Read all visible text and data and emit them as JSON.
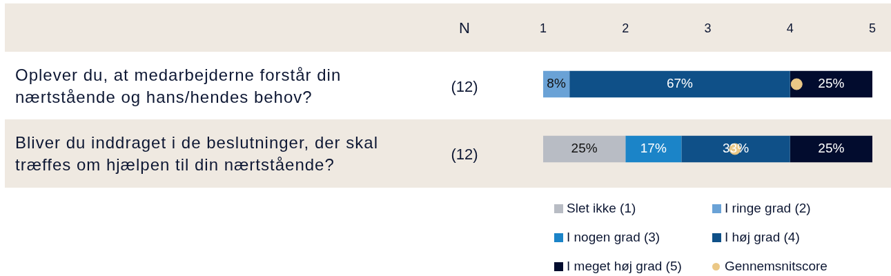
{
  "chart_data": {
    "type": "bar",
    "orientation": "horizontal",
    "stacked": true,
    "categories": [
      "Oplever du, at medarbejderne forstår din nærtstående og hans/hendes behov?",
      "Bliver du inddraget i de beslutninger, der skal træffes om hjælpen til din nærtstående?"
    ],
    "series": [
      {
        "name": "Slet ikke (1)",
        "color": "#b8bcc4",
        "values": [
          null,
          25
        ],
        "value_labels": [
          null,
          "25%"
        ]
      },
      {
        "name": "I ringe grad (2)",
        "color": "#6aa2d6",
        "values": [
          8,
          null
        ],
        "value_labels": [
          "8%",
          null
        ]
      },
      {
        "name": "I nogen grad (3)",
        "color": "#1b84c8",
        "values": [
          null,
          17
        ],
        "value_labels": [
          null,
          "17%"
        ]
      },
      {
        "name": "I høj grad (4)",
        "color": "#0f5088",
        "values": [
          67,
          33
        ],
        "value_labels": [
          "67%",
          "33%"
        ]
      },
      {
        "name": "I meget høj grad (5)",
        "color": "#020c2e",
        "values": [
          25,
          25
        ],
        "value_labels": [
          "25%",
          "25%"
        ]
      },
      {
        "name": "Gennemsnitscore",
        "type": "scatter",
        "axis": "x2",
        "marker": "circle",
        "color": "#ebc886",
        "values": [
          4.08,
          3.33
        ]
      }
    ],
    "x2lim": [
      1,
      5
    ],
    "x2ticks": [
      1,
      2,
      3,
      4,
      5
    ],
    "annotations": [
      "N",
      "(12)",
      "(12)"
    ],
    "bands": [
      {
        "axis": "y",
        "from": "Bliver du inddraget i de beslutninger, der skal træffes om hjælpen til din nærtstående?",
        "to": "Bliver du inddraget i de beslutninger, der skal træffes om hjælpen til din nærtstående?",
        "color": "#efe9e1"
      }
    ],
    "legend": "bottom",
    "grid": false
  }
}
